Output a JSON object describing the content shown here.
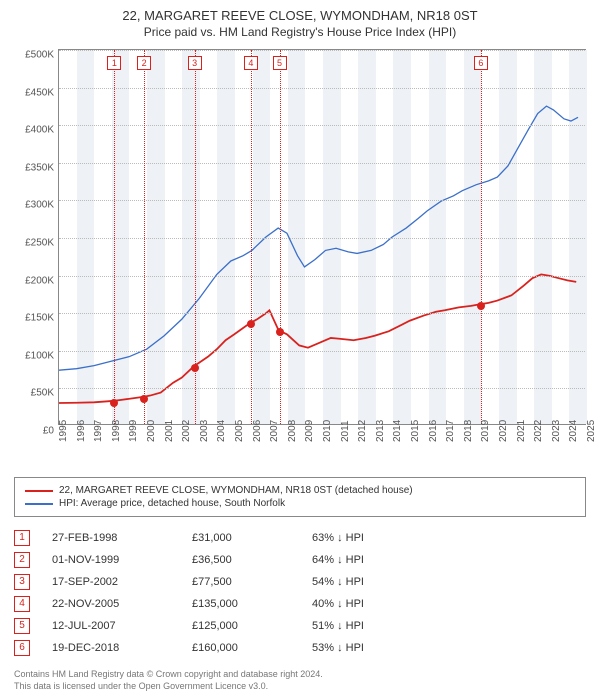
{
  "title": {
    "line1": "22, MARGARET REEVE CLOSE, WYMONDHAM, NR18 0ST",
    "line2": "Price paid vs. HM Land Registry's House Price Index (HPI)"
  },
  "chart": {
    "type": "line",
    "xlim": [
      1995,
      2025
    ],
    "ylim": [
      0,
      500000
    ],
    "ytick_step": 50000,
    "y_ticks": [
      "£0",
      "£50K",
      "£100K",
      "£150K",
      "£200K",
      "£250K",
      "£300K",
      "£350K",
      "£400K",
      "£450K",
      "£500K"
    ],
    "x_years": [
      1995,
      1996,
      1997,
      1998,
      1999,
      2000,
      2001,
      2002,
      2003,
      2004,
      2005,
      2006,
      2007,
      2008,
      2009,
      2010,
      2011,
      2012,
      2013,
      2014,
      2015,
      2016,
      2017,
      2018,
      2019,
      2020,
      2021,
      2022,
      2023,
      2024,
      2025
    ],
    "grid_color": "#bbbbbb",
    "band_color": "#eef2f7",
    "background_color": "#ffffff",
    "series": [
      {
        "name": "property",
        "label": "22, MARGARET REEVE CLOSE, WYMONDHAM, NR18 0ST (detached house)",
        "color": "#d9221e",
        "width": 1.8,
        "points": [
          [
            1995.0,
            28000
          ],
          [
            1996.0,
            28500
          ],
          [
            1997.0,
            29000
          ],
          [
            1998.15,
            31000
          ],
          [
            1998.5,
            32000
          ],
          [
            1999.84,
            36500
          ],
          [
            2000.2,
            38000
          ],
          [
            2000.8,
            42000
          ],
          [
            2001.5,
            55000
          ],
          [
            2002.0,
            62000
          ],
          [
            2002.71,
            77500
          ],
          [
            2003.0,
            82000
          ],
          [
            2003.5,
            90000
          ],
          [
            2004.0,
            100000
          ],
          [
            2004.5,
            112000
          ],
          [
            2005.0,
            120000
          ],
          [
            2005.9,
            135000
          ],
          [
            2006.3,
            140000
          ],
          [
            2006.8,
            148000
          ],
          [
            2007.0,
            152000
          ],
          [
            2007.53,
            125000
          ],
          [
            2008.0,
            120000
          ],
          [
            2008.7,
            105000
          ],
          [
            2009.2,
            102000
          ],
          [
            2009.8,
            108000
          ],
          [
            2010.5,
            115000
          ],
          [
            2011.0,
            114000
          ],
          [
            2011.8,
            112000
          ],
          [
            2012.5,
            115000
          ],
          [
            2013.0,
            118000
          ],
          [
            2013.8,
            124000
          ],
          [
            2014.5,
            132000
          ],
          [
            2015.0,
            138000
          ],
          [
            2015.8,
            145000
          ],
          [
            2016.5,
            150000
          ],
          [
            2017.0,
            152000
          ],
          [
            2017.8,
            156000
          ],
          [
            2018.5,
            158000
          ],
          [
            2018.97,
            160000
          ],
          [
            2019.5,
            162000
          ],
          [
            2020.0,
            165000
          ],
          [
            2020.8,
            172000
          ],
          [
            2021.5,
            185000
          ],
          [
            2022.0,
            195000
          ],
          [
            2022.5,
            200000
          ],
          [
            2023.0,
            198000
          ],
          [
            2023.5,
            195000
          ],
          [
            2024.0,
            192000
          ],
          [
            2024.5,
            190000
          ]
        ]
      },
      {
        "name": "hpi",
        "label": "HPI: Average price, detached house, South Norfolk",
        "color": "#3b6fc9",
        "width": 1.3,
        "points": [
          [
            1995.0,
            72000
          ],
          [
            1996.0,
            74000
          ],
          [
            1997.0,
            78000
          ],
          [
            1998.0,
            84000
          ],
          [
            1999.0,
            90000
          ],
          [
            2000.0,
            100000
          ],
          [
            2001.0,
            118000
          ],
          [
            2002.0,
            140000
          ],
          [
            2003.0,
            168000
          ],
          [
            2004.0,
            200000
          ],
          [
            2004.8,
            218000
          ],
          [
            2005.5,
            225000
          ],
          [
            2006.0,
            232000
          ],
          [
            2006.8,
            250000
          ],
          [
            2007.5,
            262000
          ],
          [
            2008.0,
            255000
          ],
          [
            2008.6,
            225000
          ],
          [
            2009.0,
            210000
          ],
          [
            2009.6,
            220000
          ],
          [
            2010.2,
            232000
          ],
          [
            2010.8,
            235000
          ],
          [
            2011.5,
            230000
          ],
          [
            2012.0,
            228000
          ],
          [
            2012.8,
            232000
          ],
          [
            2013.5,
            240000
          ],
          [
            2014.0,
            250000
          ],
          [
            2014.8,
            262000
          ],
          [
            2015.5,
            275000
          ],
          [
            2016.0,
            285000
          ],
          [
            2016.8,
            298000
          ],
          [
            2017.5,
            305000
          ],
          [
            2018.0,
            312000
          ],
          [
            2018.8,
            320000
          ],
          [
            2019.5,
            325000
          ],
          [
            2020.0,
            330000
          ],
          [
            2020.6,
            345000
          ],
          [
            2021.2,
            370000
          ],
          [
            2021.8,
            395000
          ],
          [
            2022.3,
            415000
          ],
          [
            2022.8,
            425000
          ],
          [
            2023.2,
            420000
          ],
          [
            2023.8,
            408000
          ],
          [
            2024.2,
            405000
          ],
          [
            2024.6,
            410000
          ]
        ]
      }
    ],
    "sale_markers": [
      {
        "n": "1",
        "x": 1998.15,
        "y": 31000,
        "color": "#d9221e"
      },
      {
        "n": "2",
        "x": 1999.84,
        "y": 36500,
        "color": "#d9221e"
      },
      {
        "n": "3",
        "x": 2002.71,
        "y": 77500,
        "color": "#d9221e"
      },
      {
        "n": "4",
        "x": 2005.9,
        "y": 135000,
        "color": "#d9221e"
      },
      {
        "n": "5",
        "x": 2007.53,
        "y": 125000,
        "color": "#d9221e"
      },
      {
        "n": "6",
        "x": 2018.97,
        "y": 160000,
        "color": "#d9221e"
      }
    ]
  },
  "legend": [
    {
      "color": "#d9221e",
      "label": "22, MARGARET REEVE CLOSE, WYMONDHAM, NR18 0ST (detached house)"
    },
    {
      "color": "#3b6fc9",
      "label": "HPI: Average price, detached house, South Norfolk"
    }
  ],
  "sales": [
    {
      "n": "1",
      "date": "27-FEB-1998",
      "price": "£31,000",
      "diff": "63% ↓ HPI",
      "color": "#d9221e"
    },
    {
      "n": "2",
      "date": "01-NOV-1999",
      "price": "£36,500",
      "diff": "64% ↓ HPI",
      "color": "#d9221e"
    },
    {
      "n": "3",
      "date": "17-SEP-2002",
      "price": "£77,500",
      "diff": "54% ↓ HPI",
      "color": "#d9221e"
    },
    {
      "n": "4",
      "date": "22-NOV-2005",
      "price": "£135,000",
      "diff": "40% ↓ HPI",
      "color": "#d9221e"
    },
    {
      "n": "5",
      "date": "12-JUL-2007",
      "price": "£125,000",
      "diff": "51% ↓ HPI",
      "color": "#d9221e"
    },
    {
      "n": "6",
      "date": "19-DEC-2018",
      "price": "£160,000",
      "diff": "53% ↓ HPI",
      "color": "#d9221e"
    }
  ],
  "footer": {
    "line1": "Contains HM Land Registry data © Crown copyright and database right 2024.",
    "line2": "This data is licensed under the Open Government Licence v3.0."
  }
}
